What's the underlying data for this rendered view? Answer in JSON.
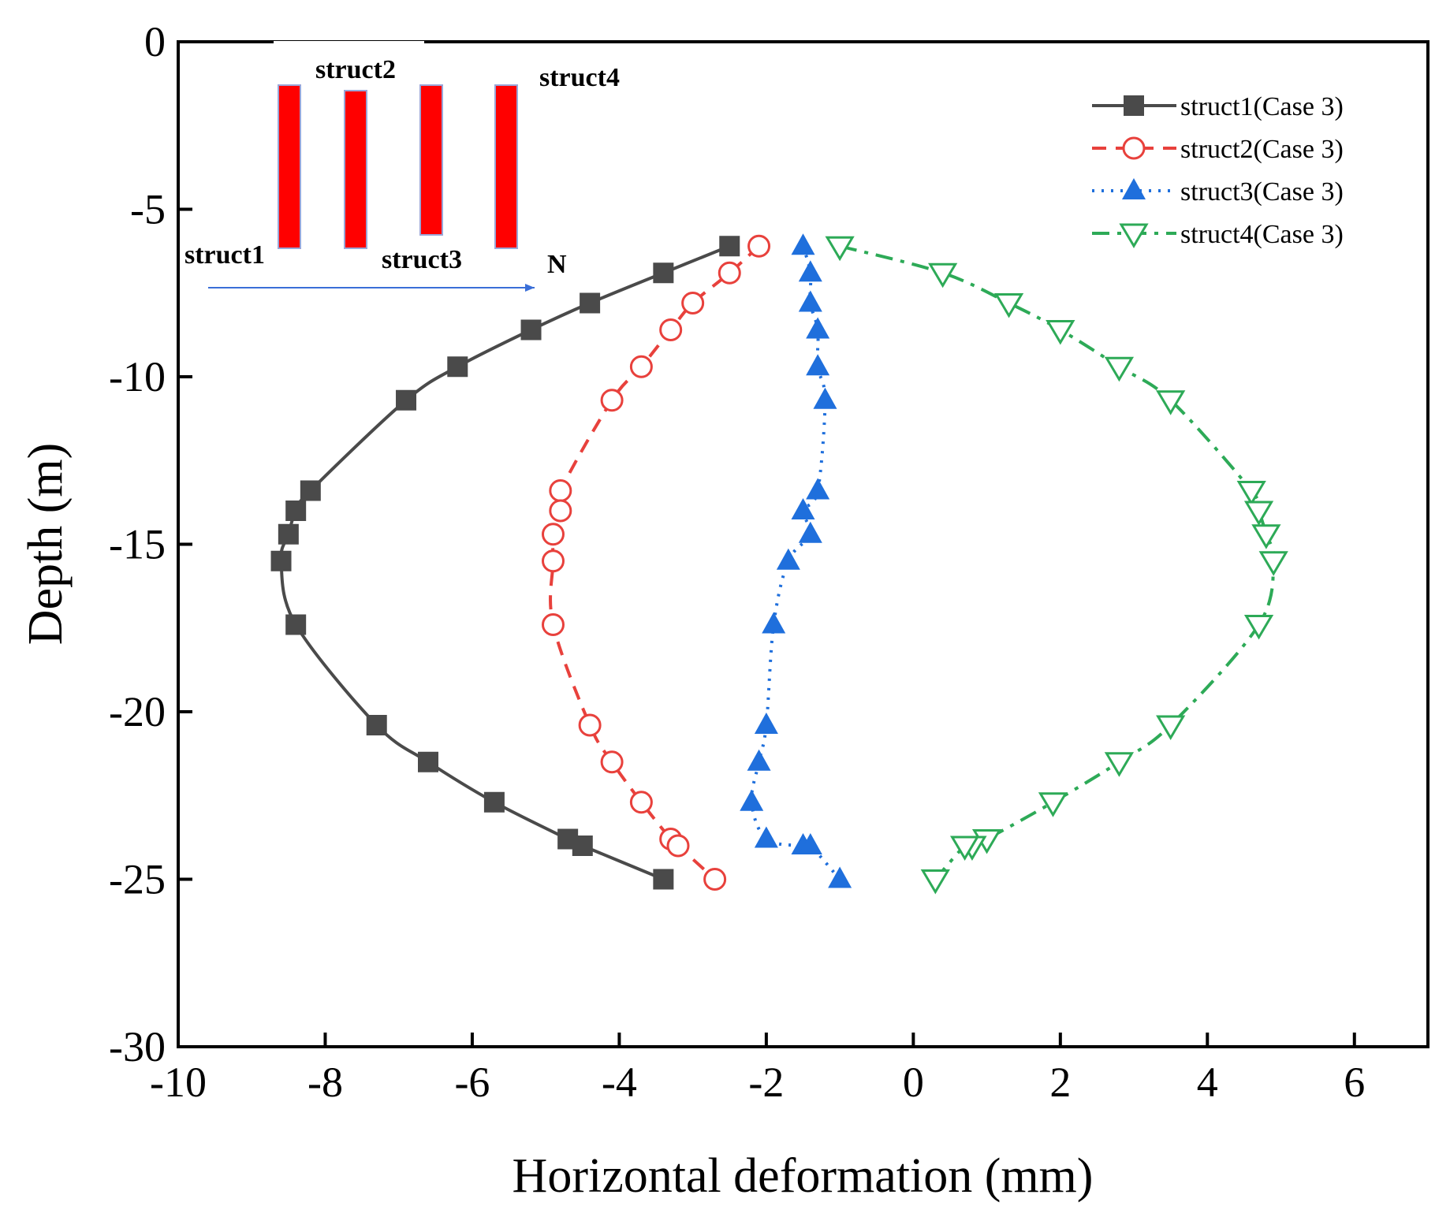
{
  "chart_data": {
    "type": "line",
    "title": "",
    "xlabel": "Horizontal deformation (mm)",
    "ylabel": "Depth (m)",
    "xlim": [
      -10,
      7
    ],
    "ylim": [
      -30,
      0
    ],
    "xticks": [
      -10,
      -8,
      -6,
      -4,
      -2,
      0,
      2,
      4,
      6
    ],
    "yticks": [
      0,
      -5,
      -10,
      -15,
      -20,
      -25,
      -30
    ],
    "grid": false,
    "legend_position": "top-right",
    "series": [
      {
        "name": "struct1(Case 3)",
        "color": "#4a4a4a",
        "marker": "square-filled",
        "line": "solid",
        "points": [
          [
            -2.5,
            -6.1
          ],
          [
            -3.4,
            -6.9
          ],
          [
            -4.4,
            -7.8
          ],
          [
            -5.2,
            -8.6
          ],
          [
            -6.2,
            -9.7
          ],
          [
            -6.9,
            -10.7
          ],
          [
            -8.2,
            -13.4
          ],
          [
            -8.4,
            -14.0
          ],
          [
            -8.5,
            -14.7
          ],
          [
            -8.6,
            -15.5
          ],
          [
            -8.4,
            -17.4
          ],
          [
            -7.3,
            -20.4
          ],
          [
            -6.6,
            -21.5
          ],
          [
            -5.7,
            -22.7
          ],
          [
            -4.7,
            -23.8
          ],
          [
            -4.5,
            -24.0
          ],
          [
            -3.4,
            -25.0
          ]
        ]
      },
      {
        "name": "struct2(Case 3)",
        "color": "#e8413c",
        "marker": "circle-open",
        "line": "dashed",
        "points": [
          [
            -2.1,
            -6.1
          ],
          [
            -2.5,
            -6.9
          ],
          [
            -3.0,
            -7.8
          ],
          [
            -3.3,
            -8.6
          ],
          [
            -3.7,
            -9.7
          ],
          [
            -4.1,
            -10.7
          ],
          [
            -4.8,
            -13.4
          ],
          [
            -4.8,
            -14.0
          ],
          [
            -4.9,
            -14.7
          ],
          [
            -4.9,
            -15.5
          ],
          [
            -4.9,
            -17.4
          ],
          [
            -4.4,
            -20.4
          ],
          [
            -4.1,
            -21.5
          ],
          [
            -3.7,
            -22.7
          ],
          [
            -3.3,
            -23.8
          ],
          [
            -3.2,
            -24.0
          ],
          [
            -2.7,
            -25.0
          ]
        ]
      },
      {
        "name": "struct3(Case 3)",
        "color": "#1f6fdc",
        "marker": "triangle-up-filled",
        "line": "dotted",
        "points": [
          [
            -1.5,
            -6.1
          ],
          [
            -1.4,
            -6.9
          ],
          [
            -1.4,
            -7.8
          ],
          [
            -1.3,
            -8.6
          ],
          [
            -1.3,
            -9.7
          ],
          [
            -1.2,
            -10.7
          ],
          [
            -1.3,
            -13.4
          ],
          [
            -1.5,
            -14.0
          ],
          [
            -1.4,
            -14.7
          ],
          [
            -1.7,
            -15.5
          ],
          [
            -1.9,
            -17.4
          ],
          [
            -2.0,
            -20.4
          ],
          [
            -2.1,
            -21.5
          ],
          [
            -2.2,
            -22.7
          ],
          [
            -2.0,
            -23.8
          ],
          [
            -1.5,
            -24.0
          ],
          [
            -1.4,
            -24.0
          ],
          [
            -1.0,
            -25.0
          ]
        ]
      },
      {
        "name": "struct4(Case 3)",
        "color": "#2daa57",
        "marker": "triangle-down-open",
        "line": "dashdot",
        "points": [
          [
            -1.0,
            -6.1
          ],
          [
            0.4,
            -6.9
          ],
          [
            1.3,
            -7.8
          ],
          [
            2.0,
            -8.6
          ],
          [
            2.8,
            -9.7
          ],
          [
            3.5,
            -10.7
          ],
          [
            4.6,
            -13.4
          ],
          [
            4.7,
            -14.0
          ],
          [
            4.8,
            -14.7
          ],
          [
            4.9,
            -15.5
          ],
          [
            4.7,
            -17.4
          ],
          [
            3.5,
            -20.4
          ],
          [
            2.8,
            -21.5
          ],
          [
            1.9,
            -22.7
          ],
          [
            1.0,
            -23.8
          ],
          [
            0.8,
            -24.0
          ],
          [
            0.7,
            -24.0
          ],
          [
            0.3,
            -25.0
          ]
        ]
      }
    ]
  },
  "inset": {
    "labels": {
      "struct1": "struct1",
      "struct2": "struct2",
      "struct3": "struct3",
      "struct4": "struct4",
      "north": "N"
    },
    "bar_color": "#ff0000",
    "bar_edge_color": "#9aa6d8",
    "arrow_color": "#3a6fd8"
  }
}
